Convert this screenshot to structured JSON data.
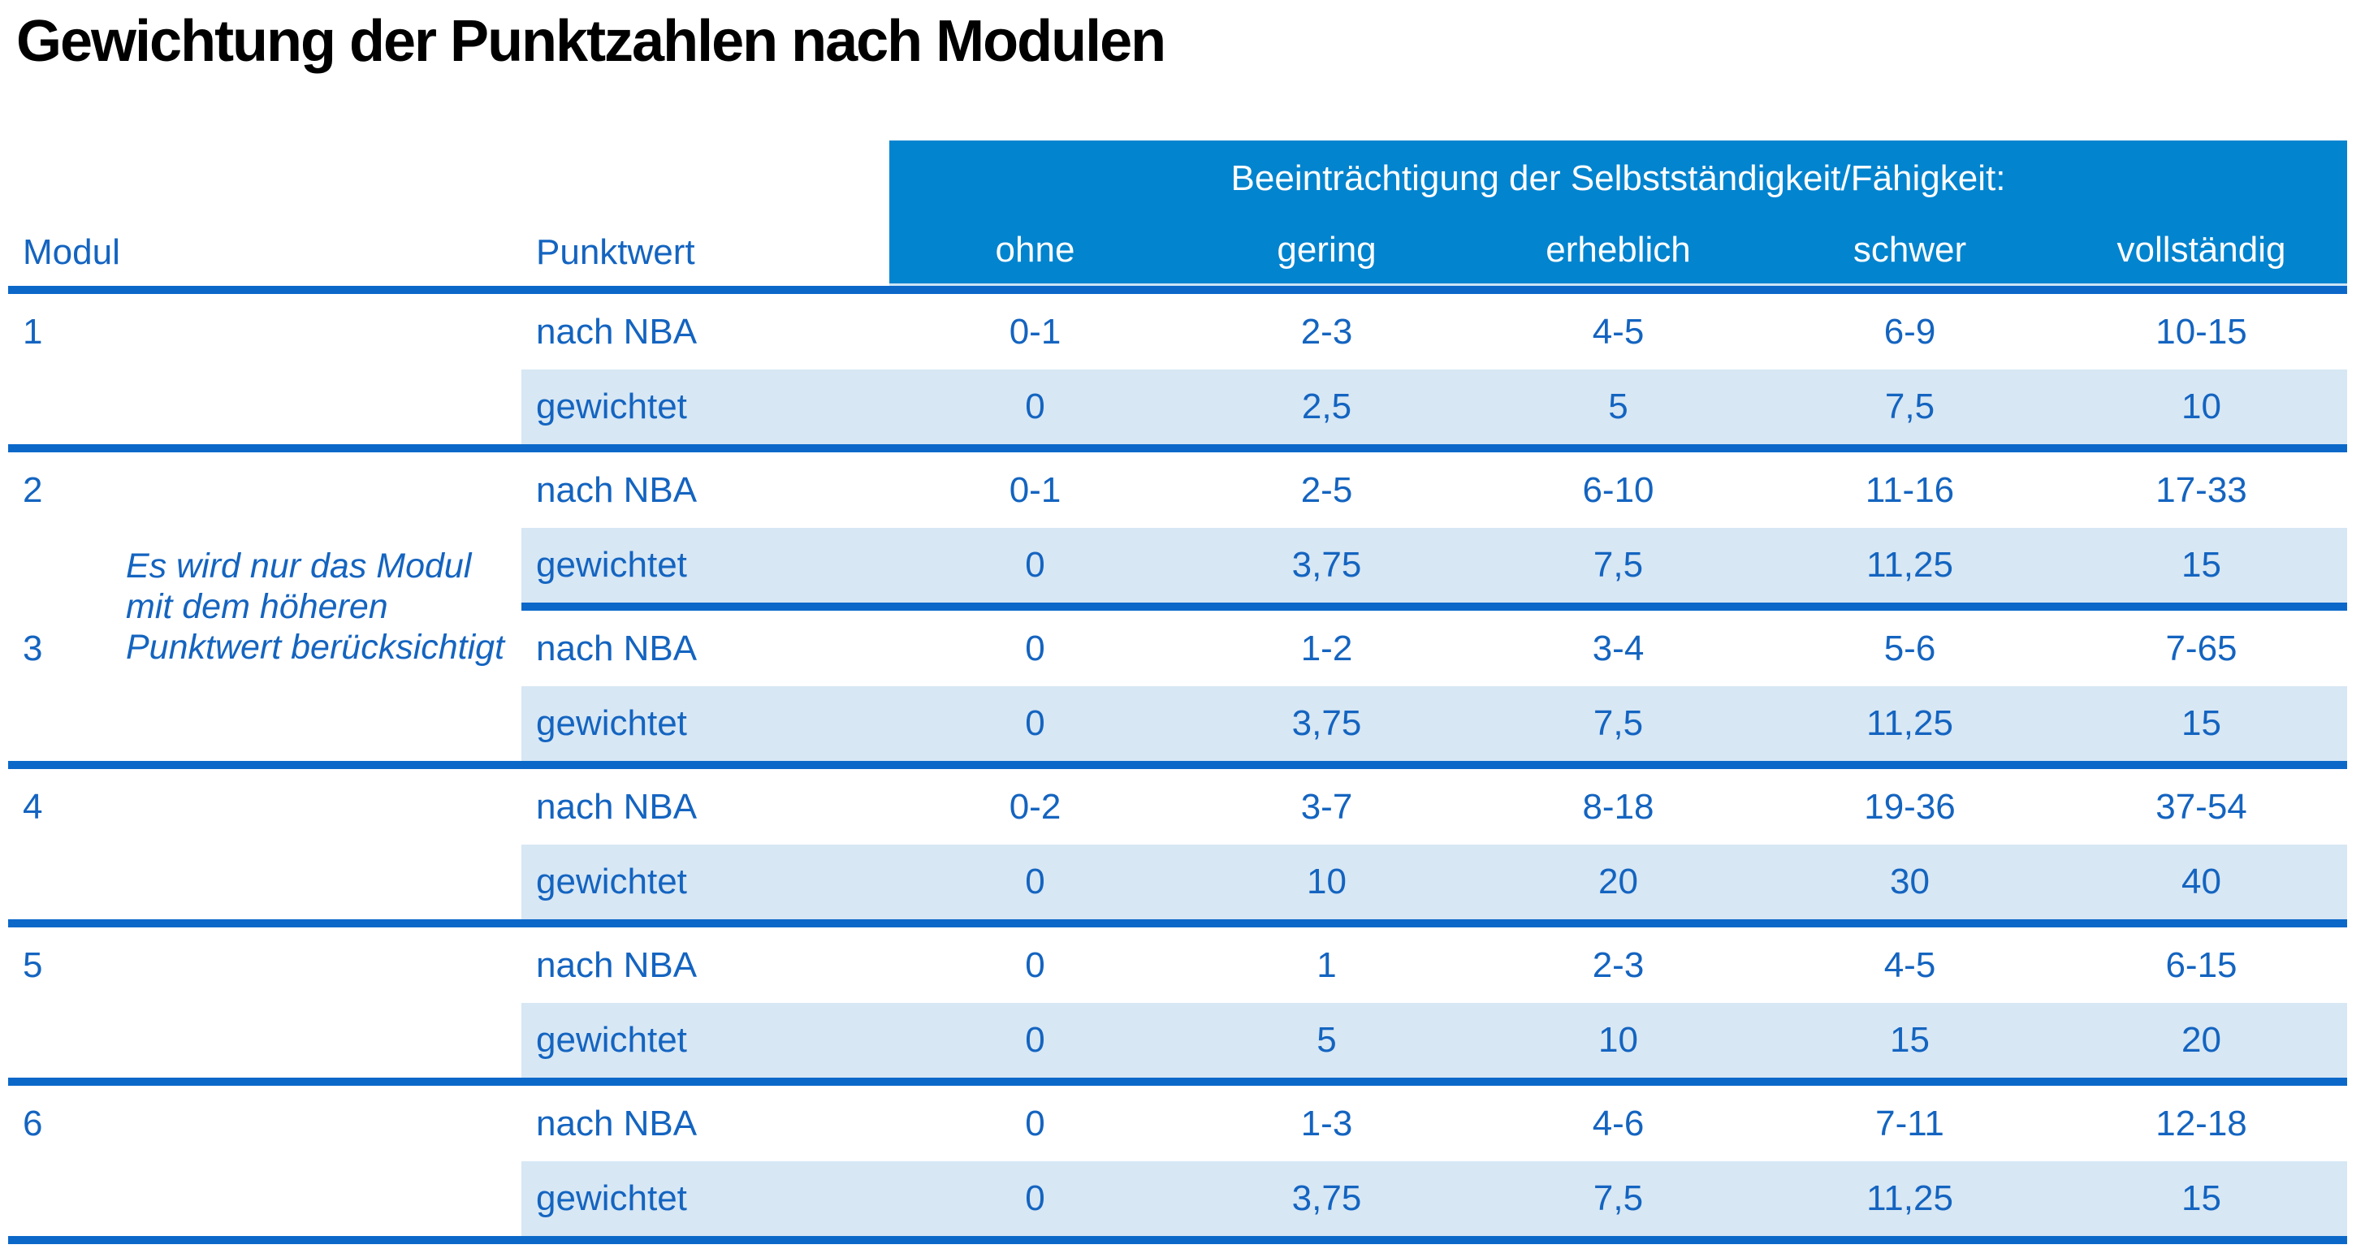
{
  "title": "Gewichtung der Punktzahlen nach Modulen",
  "colors": {
    "header_blue": "#0284cf",
    "line_blue": "#0b68c9",
    "row_light_blue": "#d7e7f4",
    "text_blue": "#1464c0"
  },
  "table": {
    "modul_header": "Modul",
    "punktwert_header": "Punktwert",
    "group_header": "Beeinträchtigung der Selbstständigkeit/Fähigkeit:",
    "severity_levels": [
      "ohne",
      "gering",
      "erheblich",
      "schwer",
      "vollständig"
    ],
    "labels": {
      "raw": "nach NBA",
      "weighted": "gewichtet"
    },
    "note_lines": [
      "Es wird nur das Modul",
      "mit dem höheren",
      "Punktwert berücksichtigt"
    ],
    "modules": [
      {
        "number": "1",
        "nach_nba": [
          "0-1",
          "2-3",
          "4-5",
          "6-9",
          "10-15"
        ],
        "gewichtet": [
          "0",
          "2,5",
          "5",
          "7,5",
          "10"
        ]
      },
      {
        "number": "2",
        "nach_nba": [
          "0-1",
          "2-5",
          "6-10",
          "11-16",
          "17-33"
        ],
        "gewichtet": [
          "0",
          "3,75",
          "7,5",
          "11,25",
          "15"
        ]
      },
      {
        "number": "3",
        "nach_nba": [
          "0",
          "1-2",
          "3-4",
          "5-6",
          "7-65"
        ],
        "gewichtet": [
          "0",
          "3,75",
          "7,5",
          "11,25",
          "15"
        ]
      },
      {
        "number": "4",
        "nach_nba": [
          "0-2",
          "3-7",
          "8-18",
          "19-36",
          "37-54"
        ],
        "gewichtet": [
          "0",
          "10",
          "20",
          "30",
          "40"
        ]
      },
      {
        "number": "5",
        "nach_nba": [
          "0",
          "1",
          "2-3",
          "4-5",
          "6-15"
        ],
        "gewichtet": [
          "0",
          "5",
          "10",
          "15",
          "20"
        ]
      },
      {
        "number": "6",
        "nach_nba": [
          "0",
          "1-3",
          "4-6",
          "7-11",
          "12-18"
        ],
        "gewichtet": [
          "0",
          "3,75",
          "7,5",
          "11,25",
          "15"
        ]
      }
    ]
  }
}
